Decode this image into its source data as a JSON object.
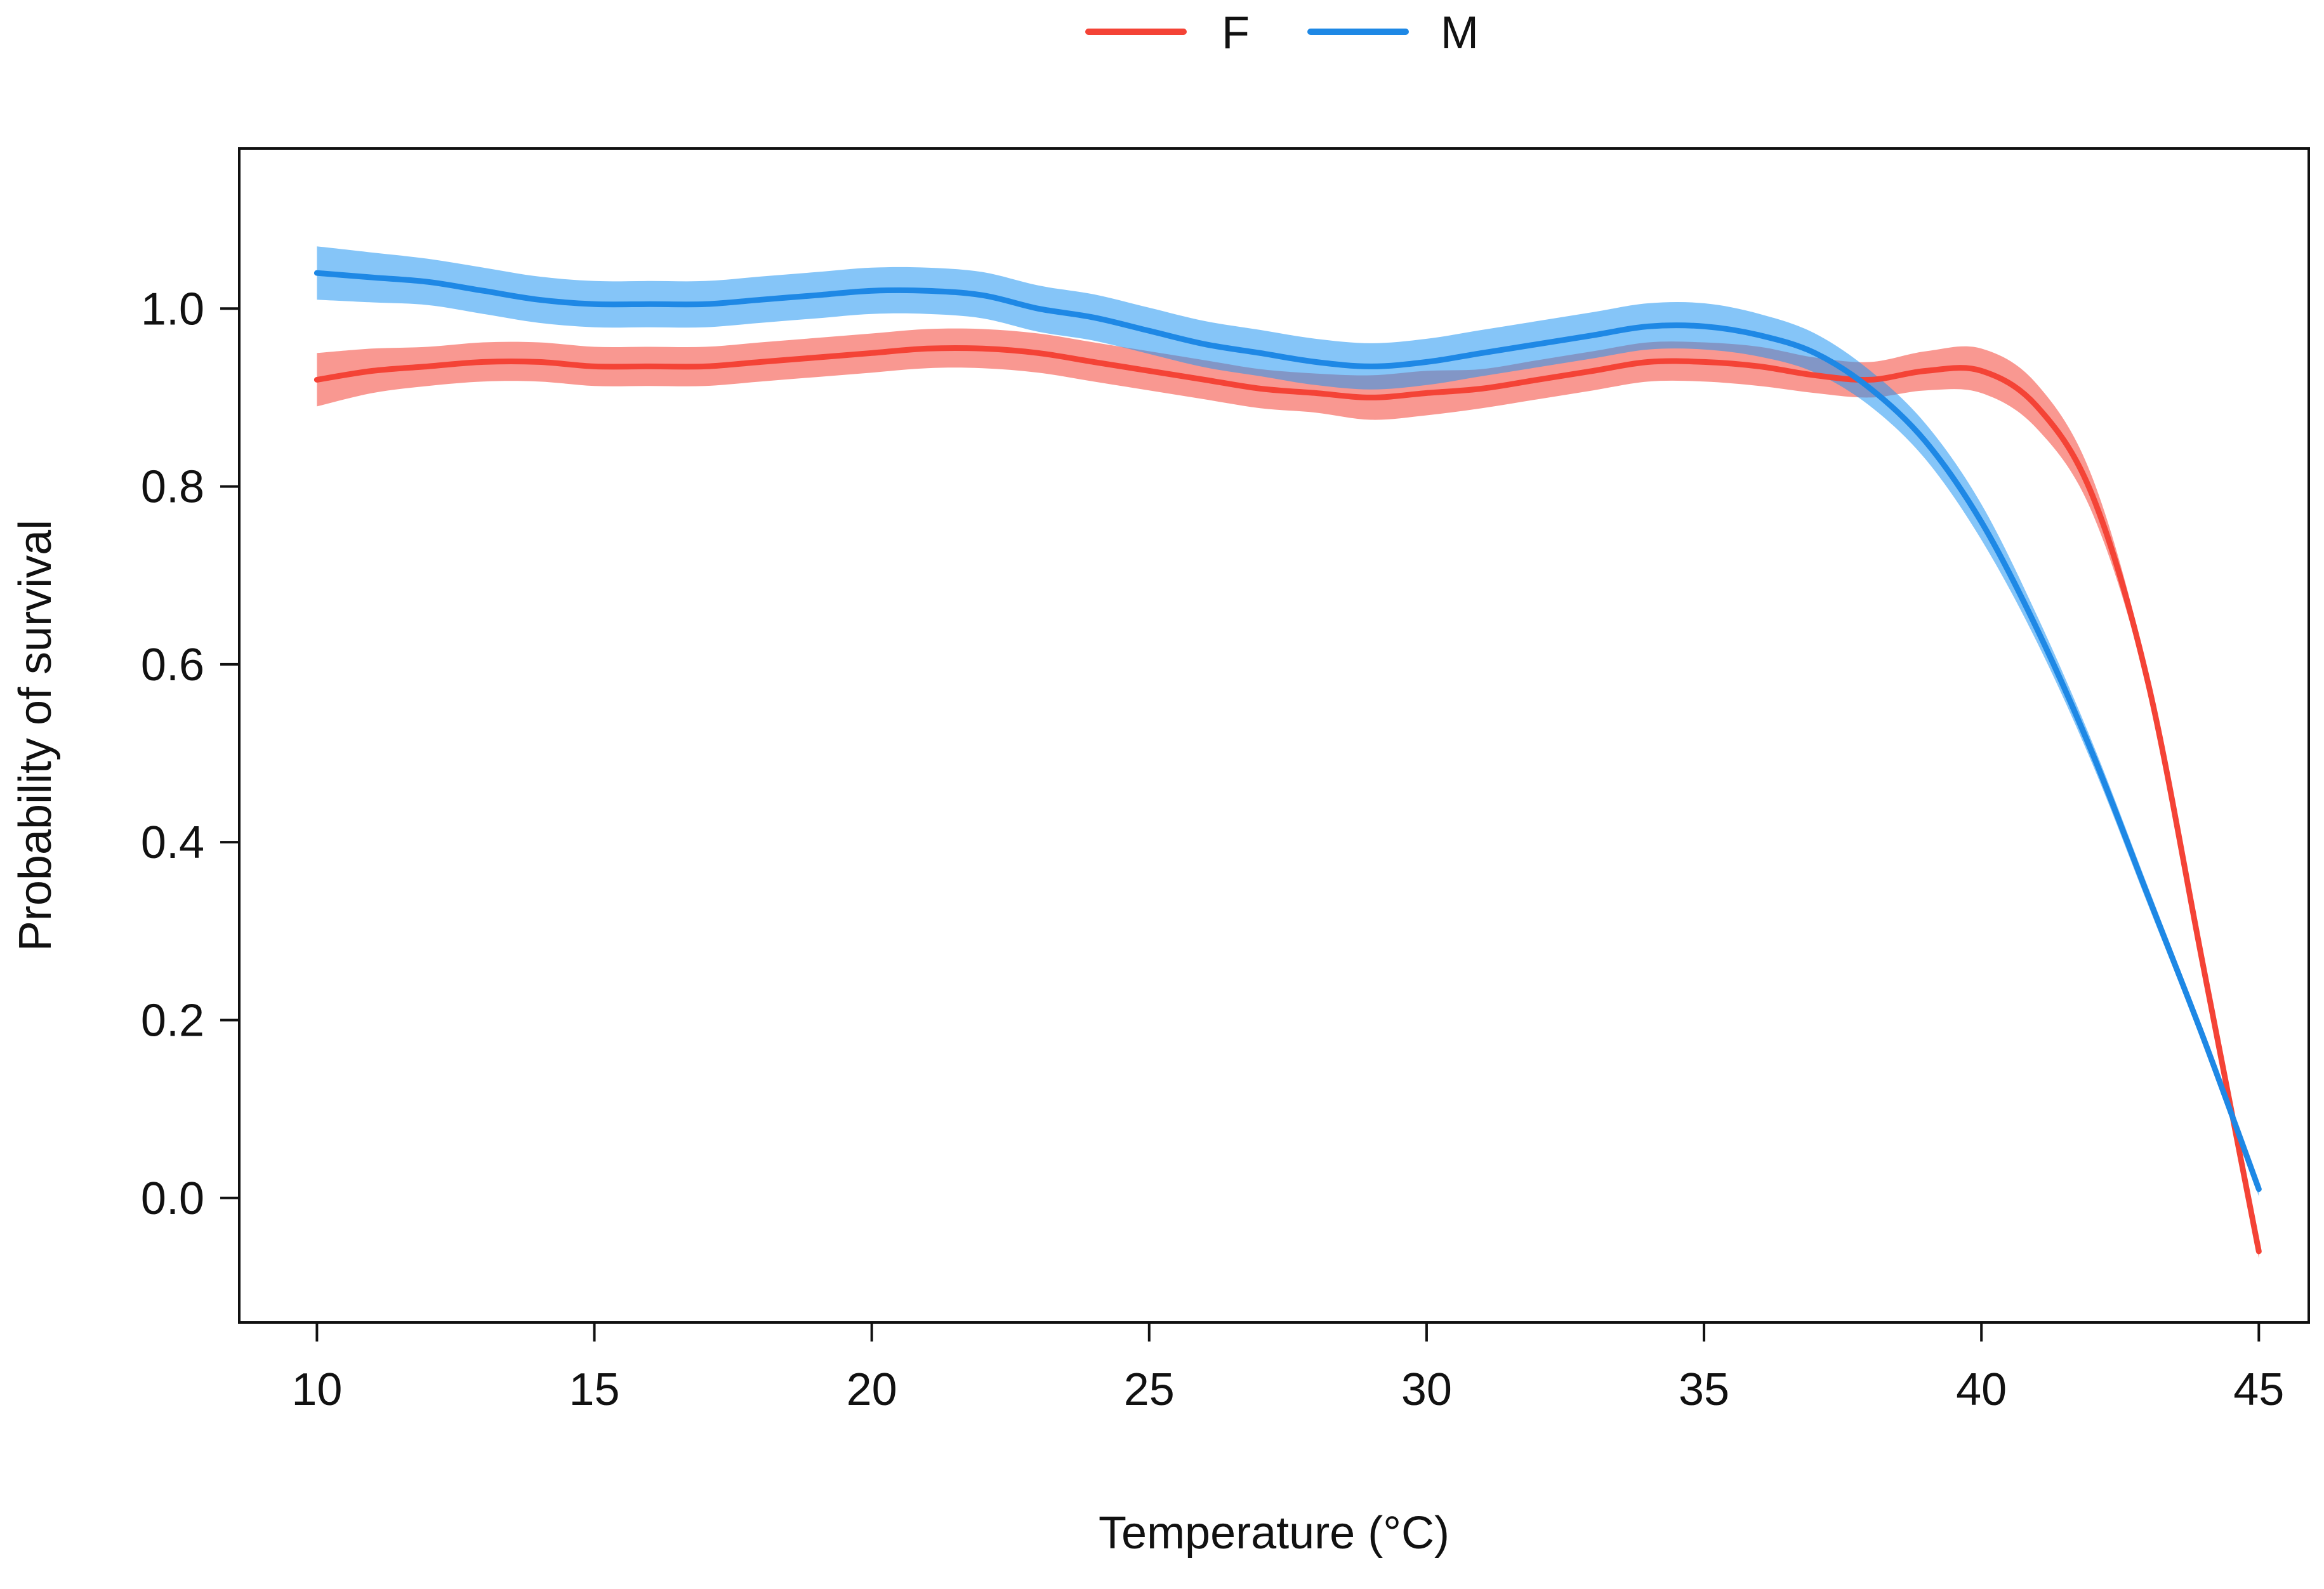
{
  "chart_data": {
    "type": "line",
    "title": "",
    "xlabel": "Temperature (°C)",
    "ylabel": "Probability of survival",
    "xlim": [
      8.6,
      45.9
    ],
    "ylim": [
      -0.14,
      1.18
    ],
    "xticks": [
      10,
      15,
      20,
      25,
      30,
      35,
      40,
      45
    ],
    "xtick_labels": [
      "10",
      "15",
      "20",
      "25",
      "30",
      "35",
      "40",
      "45"
    ],
    "yticks": [
      0.0,
      0.2,
      0.4,
      0.6,
      0.8,
      1.0
    ],
    "ytick_labels": [
      "0.0",
      "0.2",
      "0.4",
      "0.6",
      "0.8",
      "1.0"
    ],
    "grid": false,
    "legend_position": "top-center",
    "x": [
      10,
      11,
      12,
      13,
      14,
      15,
      16,
      17,
      18,
      19,
      20,
      21,
      22,
      23,
      24,
      25,
      26,
      27,
      28,
      29,
      30,
      31,
      32,
      33,
      34,
      35,
      36,
      37,
      38,
      39,
      40,
      41,
      42,
      43,
      44,
      45
    ],
    "series": [
      {
        "name": "F",
        "color": "#f44336",
        "band_color": "#f44336",
        "values": [
          0.92,
          0.93,
          0.935,
          0.94,
          0.94,
          0.935,
          0.935,
          0.935,
          0.94,
          0.945,
          0.95,
          0.955,
          0.955,
          0.95,
          0.94,
          0.93,
          0.92,
          0.91,
          0.905,
          0.9,
          0.905,
          0.91,
          0.92,
          0.93,
          0.94,
          0.94,
          0.935,
          0.925,
          0.92,
          0.93,
          0.93,
          0.89,
          0.79,
          0.58,
          0.26,
          -0.06
        ],
        "ci_halfwidth": [
          0.03,
          0.025,
          0.022,
          0.022,
          0.022,
          0.022,
          0.022,
          0.022,
          0.022,
          0.022,
          0.022,
          0.022,
          0.022,
          0.022,
          0.022,
          0.022,
          0.022,
          0.022,
          0.022,
          0.025,
          0.025,
          0.022,
          0.022,
          0.022,
          0.022,
          0.022,
          0.022,
          0.02,
          0.02,
          0.022,
          0.025,
          0.025,
          0.02,
          0.01,
          0.008,
          0.008
        ]
      },
      {
        "name": "M",
        "color": "#1e88e5",
        "band_color": "#2196f3",
        "values": [
          1.04,
          1.035,
          1.03,
          1.02,
          1.01,
          1.005,
          1.005,
          1.005,
          1.01,
          1.015,
          1.02,
          1.02,
          1.015,
          1.0,
          0.99,
          0.975,
          0.96,
          0.95,
          0.94,
          0.935,
          0.94,
          0.95,
          0.96,
          0.97,
          0.98,
          0.98,
          0.97,
          0.95,
          0.91,
          0.85,
          0.76,
          0.64,
          0.5,
          0.34,
          0.18,
          0.01
        ],
        "ci_halfwidth": [
          0.03,
          0.028,
          0.026,
          0.026,
          0.026,
          0.026,
          0.026,
          0.026,
          0.026,
          0.026,
          0.026,
          0.026,
          0.026,
          0.026,
          0.026,
          0.026,
          0.026,
          0.026,
          0.026,
          0.026,
          0.026,
          0.026,
          0.026,
          0.026,
          0.026,
          0.026,
          0.024,
          0.022,
          0.02,
          0.02,
          0.02,
          0.015,
          0.012,
          0.01,
          0.008,
          0.008
        ]
      }
    ]
  }
}
